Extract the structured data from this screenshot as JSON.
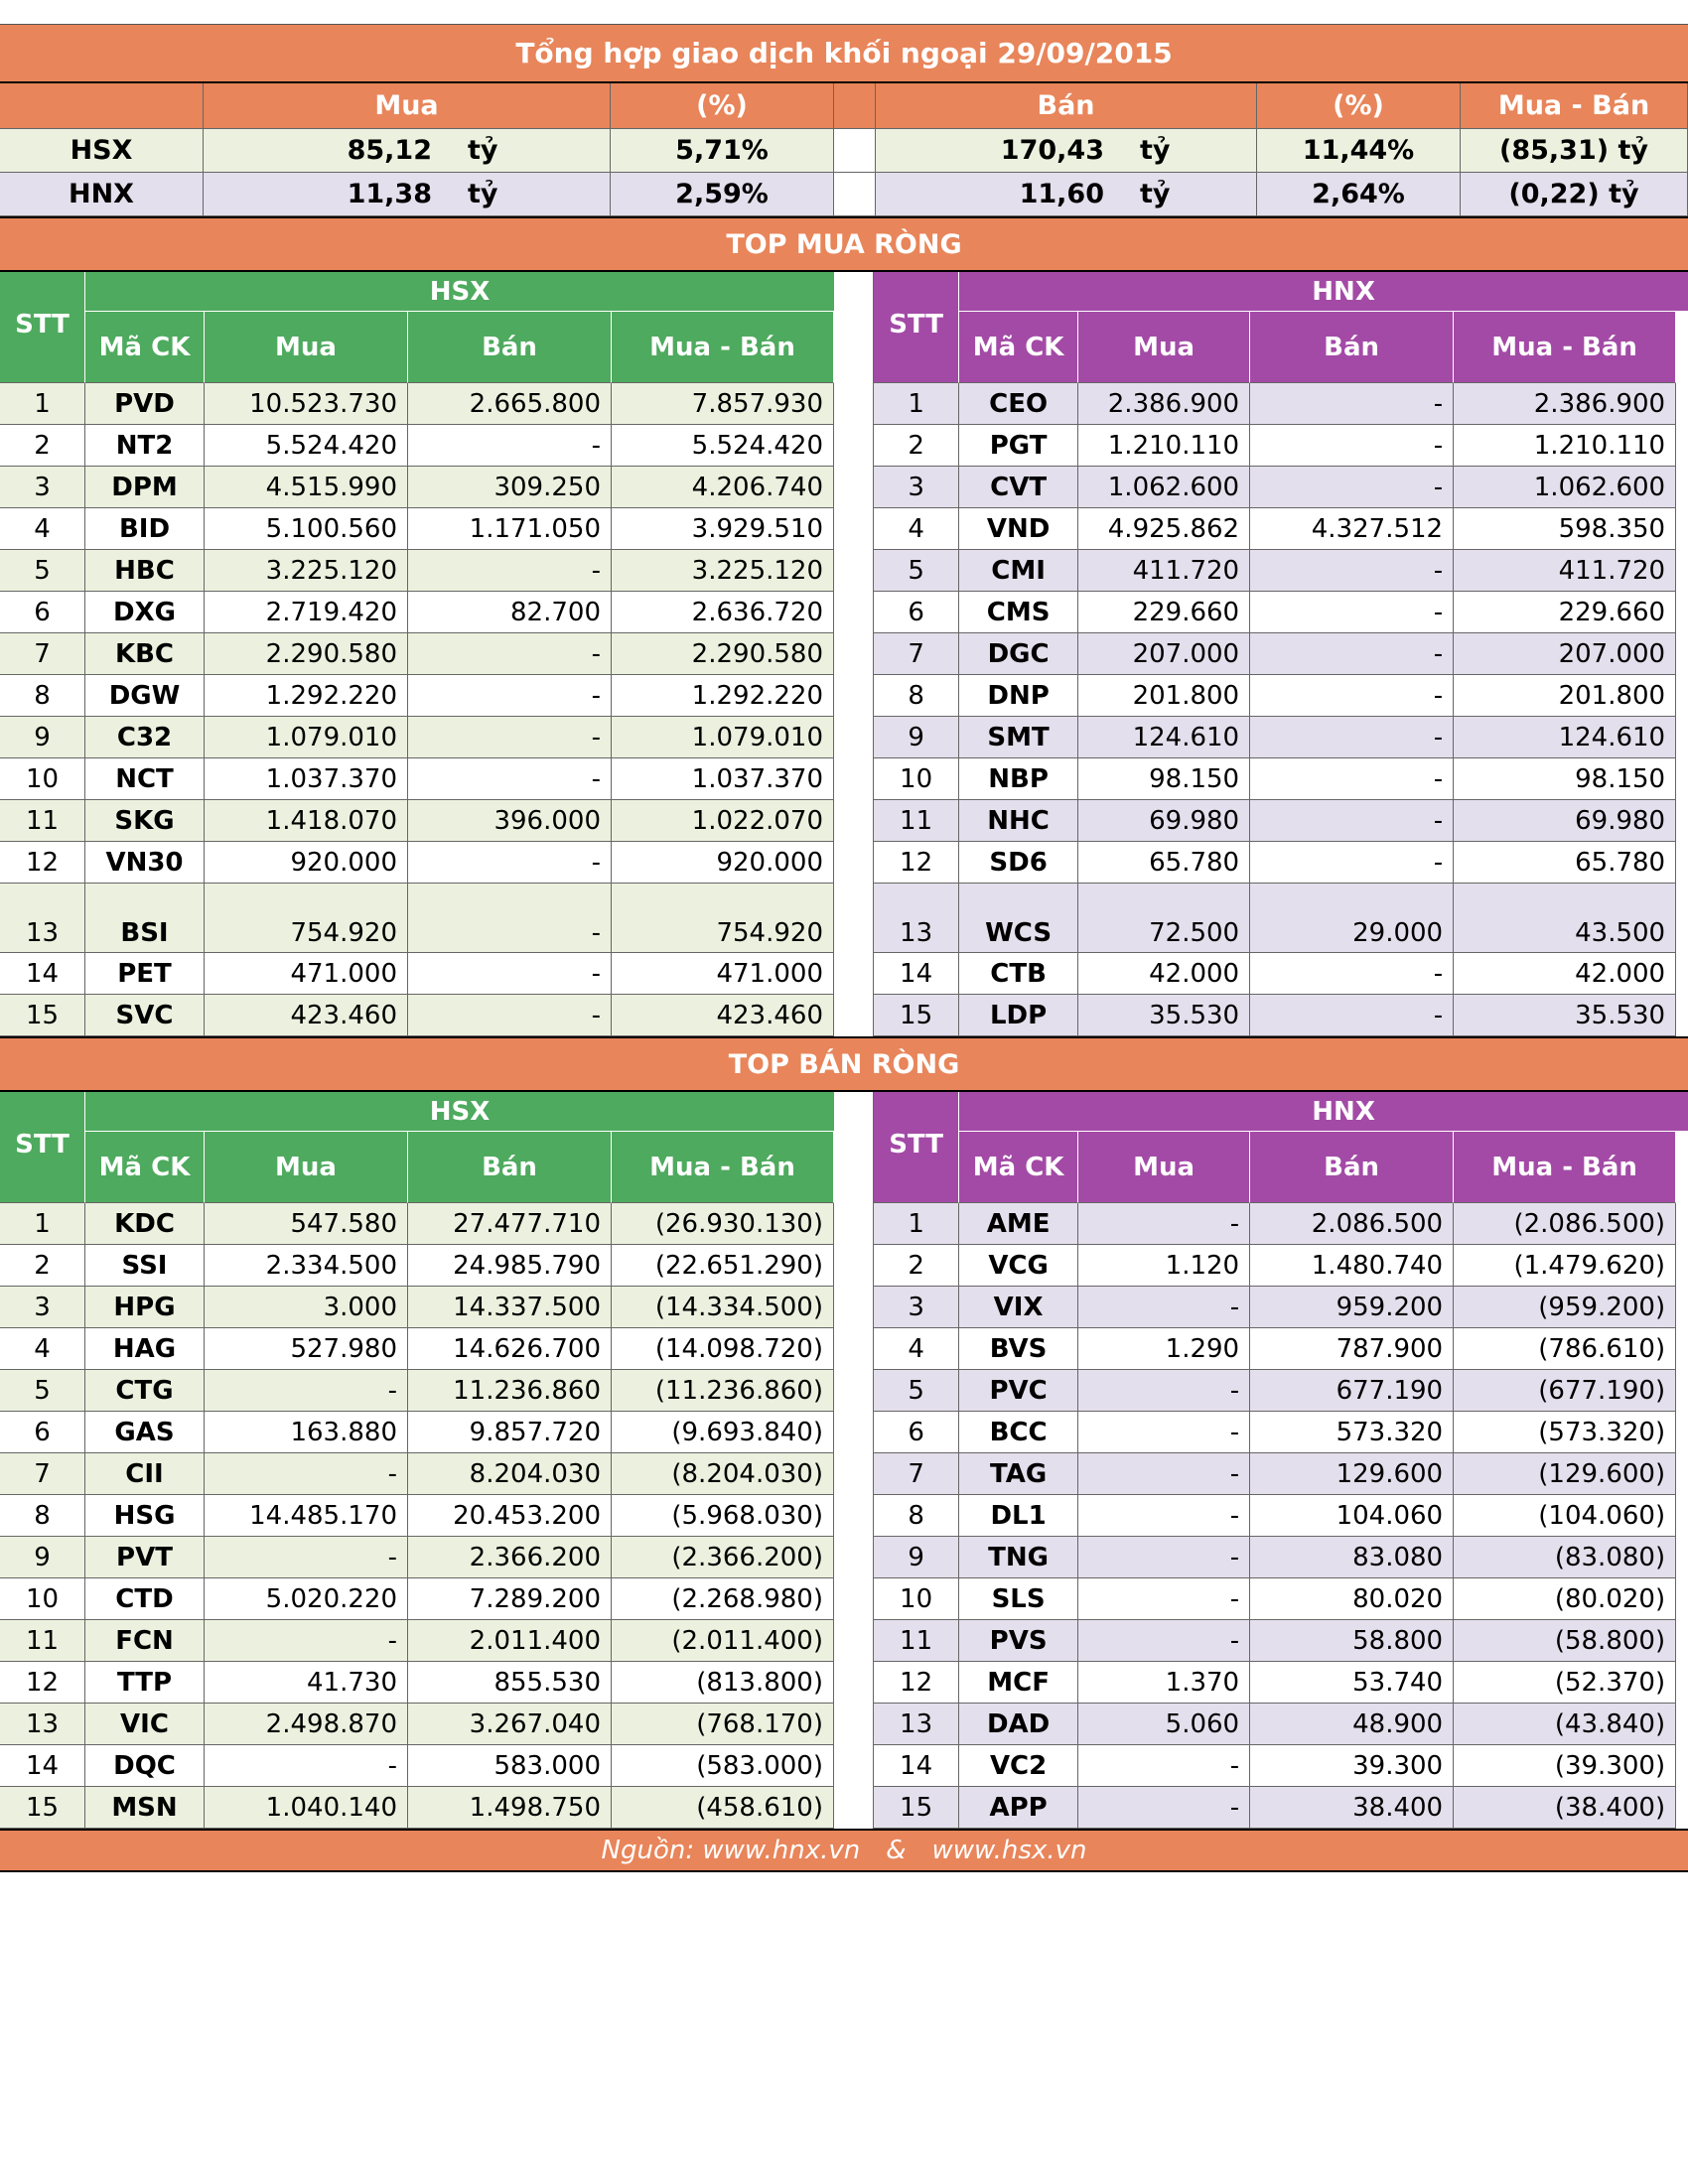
{
  "title": "Tổng hợp giao dịch khối ngoại 29/09/2015",
  "summary": {
    "headers": [
      "Mua",
      "(%)",
      "Bán",
      "(%)",
      "Mua - Bán"
    ],
    "rows": [
      {
        "exchange": "HSX",
        "buy": "85,12",
        "buy_unit": "tỷ",
        "buy_pct": "5,71%",
        "sell": "170,43",
        "sell_unit": "tỷ",
        "sell_pct": "11,44%",
        "net": "(85,31) tỷ"
      },
      {
        "exchange": "HNX",
        "buy": "11,38",
        "buy_unit": "tỷ",
        "buy_pct": "2,59%",
        "sell": "11,60",
        "sell_unit": "tỷ",
        "sell_pct": "2,64%",
        "net": "(0,22) tỷ"
      }
    ]
  },
  "headers": {
    "stt": "STT",
    "code": "Mã CK",
    "buy": "Mua",
    "sell": "Bán",
    "net": "Mua - Bán"
  },
  "top_buy": {
    "title": "TOP MUA RÒNG",
    "hsx": {
      "market": "HSX",
      "rows": [
        {
          "stt": "1",
          "code": "PVD",
          "buy": "10.523.730",
          "sell": "2.665.800",
          "net": "7.857.930"
        },
        {
          "stt": "2",
          "code": "NT2",
          "buy": "5.524.420",
          "sell": "-",
          "net": "5.524.420"
        },
        {
          "stt": "3",
          "code": "DPM",
          "buy": "4.515.990",
          "sell": "309.250",
          "net": "4.206.740"
        },
        {
          "stt": "4",
          "code": "BID",
          "buy": "5.100.560",
          "sell": "1.171.050",
          "net": "3.929.510"
        },
        {
          "stt": "5",
          "code": "HBC",
          "buy": "3.225.120",
          "sell": "-",
          "net": "3.225.120"
        },
        {
          "stt": "6",
          "code": "DXG",
          "buy": "2.719.420",
          "sell": "82.700",
          "net": "2.636.720"
        },
        {
          "stt": "7",
          "code": "KBC",
          "buy": "2.290.580",
          "sell": "-",
          "net": "2.290.580"
        },
        {
          "stt": "8",
          "code": "DGW",
          "buy": "1.292.220",
          "sell": "-",
          "net": "1.292.220"
        },
        {
          "stt": "9",
          "code": "C32",
          "buy": "1.079.010",
          "sell": "-",
          "net": "1.079.010"
        },
        {
          "stt": "10",
          "code": "NCT",
          "buy": "1.037.370",
          "sell": "-",
          "net": "1.037.370"
        },
        {
          "stt": "11",
          "code": "SKG",
          "buy": "1.418.070",
          "sell": "396.000",
          "net": "1.022.070"
        },
        {
          "stt": "12",
          "code": "VN30",
          "buy": "920.000",
          "sell": "-",
          "net": "920.000"
        },
        {
          "stt": "13",
          "code": "BSI",
          "buy": "754.920",
          "sell": "-",
          "net": "754.920"
        },
        {
          "stt": "14",
          "code": "PET",
          "buy": "471.000",
          "sell": "-",
          "net": "471.000"
        },
        {
          "stt": "15",
          "code": "SVC",
          "buy": "423.460",
          "sell": "-",
          "net": "423.460"
        }
      ]
    },
    "hnx": {
      "market": "HNX",
      "rows": [
        {
          "stt": "1",
          "code": "CEO",
          "buy": "2.386.900",
          "sell": "-",
          "net": "2.386.900"
        },
        {
          "stt": "2",
          "code": "PGT",
          "buy": "1.210.110",
          "sell": "-",
          "net": "1.210.110"
        },
        {
          "stt": "3",
          "code": "CVT",
          "buy": "1.062.600",
          "sell": "-",
          "net": "1.062.600"
        },
        {
          "stt": "4",
          "code": "VND",
          "buy": "4.925.862",
          "sell": "4.327.512",
          "net": "598.350"
        },
        {
          "stt": "5",
          "code": "CMI",
          "buy": "411.720",
          "sell": "-",
          "net": "411.720"
        },
        {
          "stt": "6",
          "code": "CMS",
          "buy": "229.660",
          "sell": "-",
          "net": "229.660"
        },
        {
          "stt": "7",
          "code": "DGC",
          "buy": "207.000",
          "sell": "-",
          "net": "207.000"
        },
        {
          "stt": "8",
          "code": "DNP",
          "buy": "201.800",
          "sell": "-",
          "net": "201.800"
        },
        {
          "stt": "9",
          "code": "SMT",
          "buy": "124.610",
          "sell": "-",
          "net": "124.610"
        },
        {
          "stt": "10",
          "code": "NBP",
          "buy": "98.150",
          "sell": "-",
          "net": "98.150"
        },
        {
          "stt": "11",
          "code": "NHC",
          "buy": "69.980",
          "sell": "-",
          "net": "69.980"
        },
        {
          "stt": "12",
          "code": "SD6",
          "buy": "65.780",
          "sell": "-",
          "net": "65.780"
        },
        {
          "stt": "13",
          "code": "WCS",
          "buy": "72.500",
          "sell": "29.000",
          "net": "43.500"
        },
        {
          "stt": "14",
          "code": "CTB",
          "buy": "42.000",
          "sell": "-",
          "net": "42.000"
        },
        {
          "stt": "15",
          "code": "LDP",
          "buy": "35.530",
          "sell": "-",
          "net": "35.530"
        }
      ]
    }
  },
  "top_sell": {
    "title": "TOP BÁN RÒNG",
    "hsx": {
      "market": "HSX",
      "rows": [
        {
          "stt": "1",
          "code": "KDC",
          "buy": "547.580",
          "sell": "27.477.710",
          "net": "(26.930.130)"
        },
        {
          "stt": "2",
          "code": "SSI",
          "buy": "2.334.500",
          "sell": "24.985.790",
          "net": "(22.651.290)"
        },
        {
          "stt": "3",
          "code": "HPG",
          "buy": "3.000",
          "sell": "14.337.500",
          "net": "(14.334.500)"
        },
        {
          "stt": "4",
          "code": "HAG",
          "buy": "527.980",
          "sell": "14.626.700",
          "net": "(14.098.720)"
        },
        {
          "stt": "5",
          "code": "CTG",
          "buy": "-",
          "sell": "11.236.860",
          "net": "(11.236.860)"
        },
        {
          "stt": "6",
          "code": "GAS",
          "buy": "163.880",
          "sell": "9.857.720",
          "net": "(9.693.840)"
        },
        {
          "stt": "7",
          "code": "CII",
          "buy": "-",
          "sell": "8.204.030",
          "net": "(8.204.030)"
        },
        {
          "stt": "8",
          "code": "HSG",
          "buy": "14.485.170",
          "sell": "20.453.200",
          "net": "(5.968.030)"
        },
        {
          "stt": "9",
          "code": "PVT",
          "buy": "-",
          "sell": "2.366.200",
          "net": "(2.366.200)"
        },
        {
          "stt": "10",
          "code": "CTD",
          "buy": "5.020.220",
          "sell": "7.289.200",
          "net": "(2.268.980)"
        },
        {
          "stt": "11",
          "code": "FCN",
          "buy": "-",
          "sell": "2.011.400",
          "net": "(2.011.400)"
        },
        {
          "stt": "12",
          "code": "TTP",
          "buy": "41.730",
          "sell": "855.530",
          "net": "(813.800)"
        },
        {
          "stt": "13",
          "code": "VIC",
          "buy": "2.498.870",
          "sell": "3.267.040",
          "net": "(768.170)"
        },
        {
          "stt": "14",
          "code": "DQC",
          "buy": "-",
          "sell": "583.000",
          "net": "(583.000)"
        },
        {
          "stt": "15",
          "code": "MSN",
          "buy": "1.040.140",
          "sell": "1.498.750",
          "net": "(458.610)"
        }
      ]
    },
    "hnx": {
      "market": "HNX",
      "rows": [
        {
          "stt": "1",
          "code": "AME",
          "buy": "-",
          "sell": "2.086.500",
          "net": "(2.086.500)"
        },
        {
          "stt": "2",
          "code": "VCG",
          "buy": "1.120",
          "sell": "1.480.740",
          "net": "(1.479.620)"
        },
        {
          "stt": "3",
          "code": "VIX",
          "buy": "-",
          "sell": "959.200",
          "net": "(959.200)"
        },
        {
          "stt": "4",
          "code": "BVS",
          "buy": "1.290",
          "sell": "787.900",
          "net": "(786.610)"
        },
        {
          "stt": "5",
          "code": "PVC",
          "buy": "-",
          "sell": "677.190",
          "net": "(677.190)"
        },
        {
          "stt": "6",
          "code": "BCC",
          "buy": "-",
          "sell": "573.320",
          "net": "(573.320)"
        },
        {
          "stt": "7",
          "code": "TAG",
          "buy": "-",
          "sell": "129.600",
          "net": "(129.600)"
        },
        {
          "stt": "8",
          "code": "DL1",
          "buy": "-",
          "sell": "104.060",
          "net": "(104.060)"
        },
        {
          "stt": "9",
          "code": "TNG",
          "buy": "-",
          "sell": "83.080",
          "net": "(83.080)"
        },
        {
          "stt": "10",
          "code": "SLS",
          "buy": "-",
          "sell": "80.020",
          "net": "(80.020)"
        },
        {
          "stt": "11",
          "code": "PVS",
          "buy": "-",
          "sell": "58.800",
          "net": "(58.800)"
        },
        {
          "stt": "12",
          "code": "MCF",
          "buy": "1.370",
          "sell": "53.740",
          "net": "(52.370)"
        },
        {
          "stt": "13",
          "code": "DAD",
          "buy": "5.060",
          "sell": "48.900",
          "net": "(43.840)"
        },
        {
          "stt": "14",
          "code": "VC2",
          "buy": "-",
          "sell": "39.300",
          "net": "(39.300)"
        },
        {
          "stt": "15",
          "code": "APP",
          "buy": "-",
          "sell": "38.400",
          "net": "(38.400)"
        }
      ]
    }
  },
  "footer": {
    "source_label": "Nguồn: www.hnx.vn",
    "separator": "&",
    "source2": "www.hsx.vn"
  },
  "colors": {
    "orange": "#e8855a",
    "green": "#4eaa5e",
    "purple": "#a34aa6",
    "green_light": "#ebf1de",
    "purple_light": "#e4dfec"
  }
}
